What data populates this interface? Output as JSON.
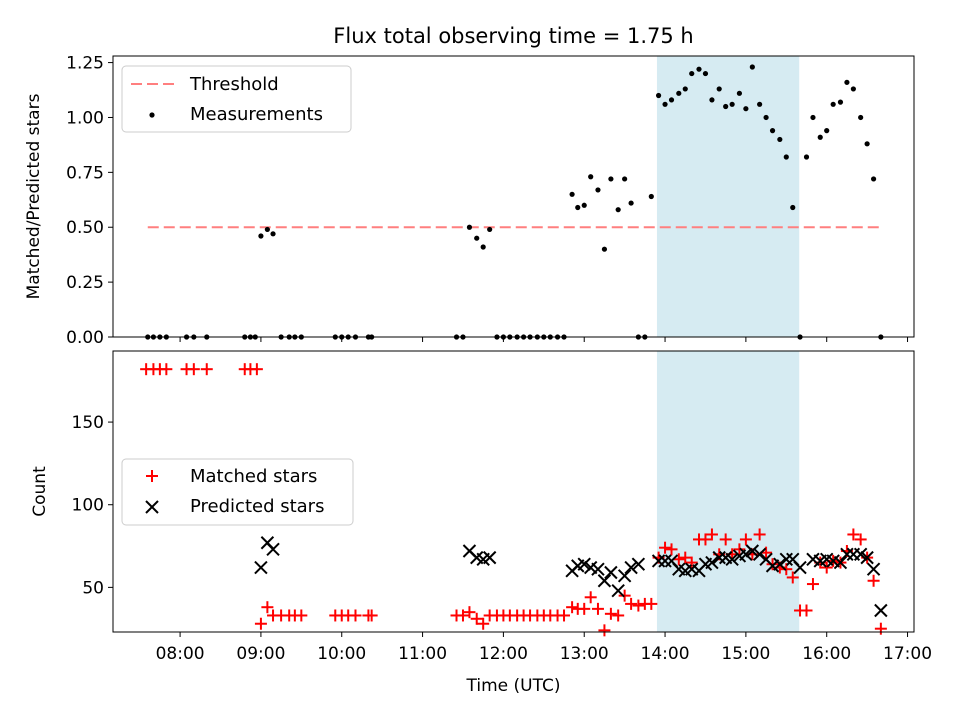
{
  "chart_data": [
    {
      "type": "scatter",
      "title": "Flux total observing time = 1.75 h",
      "xlabel": "",
      "ylabel": "Matched/Predicted stars",
      "xlim": [
        7.17,
        17.08
      ],
      "ylim": [
        0,
        1.28
      ],
      "yticks": [
        0.0,
        0.25,
        0.5,
        0.75,
        1.0,
        1.25
      ],
      "ytick_labels": [
        "0.00",
        "0.25",
        "0.50",
        "0.75",
        "1.00",
        "1.25"
      ],
      "highlight_span": [
        13.9,
        15.66
      ],
      "legend": [
        "Threshold",
        "Measurements"
      ],
      "threshold": {
        "name": "Threshold",
        "value": 0.5,
        "x": [
          7.6,
          16.65
        ],
        "color": "#ff7f7f"
      },
      "measurements": {
        "name": "Measurements",
        "color": "#000000",
        "x": [
          7.6,
          7.67,
          7.75,
          7.83,
          8.08,
          8.17,
          8.33,
          8.8,
          8.87,
          8.93,
          9.0,
          9.08,
          9.15,
          9.25,
          9.35,
          9.42,
          9.5,
          9.92,
          10.0,
          10.08,
          10.17,
          10.33,
          10.37,
          11.42,
          11.5,
          11.58,
          11.67,
          11.75,
          11.83,
          11.92,
          12.0,
          12.08,
          12.17,
          12.25,
          12.33,
          12.42,
          12.5,
          12.58,
          12.67,
          12.75,
          12.85,
          12.92,
          13.0,
          13.08,
          13.17,
          13.25,
          13.33,
          13.42,
          13.5,
          13.58,
          13.67,
          13.75,
          13.83,
          13.92,
          14.0,
          14.08,
          14.17,
          14.25,
          14.33,
          14.42,
          14.5,
          14.58,
          14.67,
          14.75,
          14.83,
          14.92,
          15.0,
          15.08,
          15.17,
          15.25,
          15.33,
          15.42,
          15.5,
          15.58,
          15.67,
          15.75,
          15.83,
          15.92,
          16.0,
          16.08,
          16.17,
          16.25,
          16.33,
          16.42,
          16.5,
          16.58,
          16.67
        ],
        "y": [
          0.0,
          0.0,
          0.0,
          0.0,
          0.0,
          0.0,
          0.0,
          0.0,
          0.0,
          0.0,
          0.46,
          0.49,
          0.47,
          0.0,
          0.0,
          0.0,
          0.0,
          0.0,
          0.0,
          0.0,
          0.0,
          0.0,
          0.0,
          0.0,
          0.0,
          0.5,
          0.45,
          0.41,
          0.49,
          0.0,
          0.0,
          0.0,
          0.0,
          0.0,
          0.0,
          0.0,
          0.0,
          0.0,
          0.0,
          0.0,
          0.65,
          0.59,
          0.6,
          0.73,
          0.67,
          0.4,
          0.72,
          0.58,
          0.72,
          0.61,
          0.0,
          0.0,
          0.64,
          1.1,
          1.06,
          1.08,
          1.11,
          1.13,
          1.2,
          1.22,
          1.2,
          1.08,
          1.13,
          1.05,
          1.06,
          1.11,
          1.04,
          1.23,
          1.06,
          1.0,
          0.94,
          0.9,
          0.82,
          0.59,
          0.0,
          0.82,
          1.0,
          0.91,
          0.94,
          1.06,
          1.07,
          1.16,
          1.13,
          1.0,
          0.88,
          0.72,
          0.0
        ]
      }
    },
    {
      "type": "scatter",
      "title": "",
      "xlabel": "Time (UTC)",
      "ylabel": "Count",
      "xlim": [
        7.17,
        17.08
      ],
      "ylim": [
        23,
        193
      ],
      "yticks": [
        50,
        100,
        150
      ],
      "ytick_labels": [
        "50",
        "100",
        "150"
      ],
      "xticks": [
        8,
        9,
        10,
        11,
        12,
        13,
        14,
        15,
        16,
        17
      ],
      "xtick_labels": [
        "08:00",
        "09:00",
        "10:00",
        "11:00",
        "12:00",
        "13:00",
        "14:00",
        "15:00",
        "16:00",
        "17:00"
      ],
      "highlight_span": [
        13.9,
        15.66
      ],
      "legend": [
        "Matched stars",
        "Predicted stars"
      ],
      "series": [
        {
          "name": "Matched stars",
          "marker": "+",
          "color": "#ff0000",
          "x": [
            7.58,
            7.67,
            7.75,
            7.83,
            8.08,
            8.17,
            8.33,
            8.8,
            8.87,
            8.95,
            9.0,
            9.08,
            9.15,
            9.25,
            9.35,
            9.42,
            9.5,
            9.92,
            10.0,
            10.08,
            10.17,
            10.33,
            10.37,
            11.42,
            11.5,
            11.58,
            11.67,
            11.75,
            11.83,
            11.92,
            12.0,
            12.08,
            12.17,
            12.25,
            12.33,
            12.42,
            12.5,
            12.58,
            12.67,
            12.75,
            12.85,
            12.92,
            13.0,
            13.08,
            13.17,
            13.25,
            13.33,
            13.42,
            13.5,
            13.58,
            13.67,
            13.75,
            13.83,
            13.92,
            14.0,
            14.08,
            14.17,
            14.25,
            14.33,
            14.42,
            14.5,
            14.58,
            14.67,
            14.75,
            14.83,
            14.92,
            15.0,
            15.08,
            15.17,
            15.25,
            15.33,
            15.42,
            15.5,
            15.58,
            15.67,
            15.75,
            15.83,
            15.92,
            16.0,
            16.08,
            16.17,
            16.25,
            16.33,
            16.42,
            16.5,
            16.58,
            16.67
          ],
          "values": [
            182,
            182,
            182,
            182,
            182,
            182,
            182,
            182,
            182,
            182,
            28,
            38,
            33,
            33,
            33,
            33,
            33,
            33,
            33,
            33,
            33,
            33,
            33,
            33,
            33,
            35,
            31,
            28,
            33,
            33,
            33,
            33,
            33,
            33,
            33,
            33,
            33,
            33,
            33,
            33,
            38,
            37,
            37,
            44,
            37,
            24,
            34,
            33,
            45,
            40,
            39,
            40,
            40,
            68,
            74,
            73,
            67,
            68,
            65,
            79,
            79,
            82,
            70,
            79,
            70,
            73,
            79,
            70,
            82,
            71,
            64,
            62,
            61,
            56,
            36,
            36,
            52,
            65,
            62,
            66,
            65,
            72,
            82,
            79,
            68,
            54,
            25
          ]
        },
        {
          "name": "Predicted stars",
          "marker": "x",
          "color": "#000000",
          "x": [
            9.0,
            9.08,
            9.15,
            11.58,
            11.67,
            11.75,
            11.83,
            12.85,
            12.92,
            13.0,
            13.08,
            13.17,
            13.25,
            13.33,
            13.42,
            13.5,
            13.58,
            13.67,
            13.92,
            14.0,
            14.08,
            14.17,
            14.25,
            14.33,
            14.42,
            14.5,
            14.58,
            14.67,
            14.75,
            14.83,
            14.92,
            15.0,
            15.08,
            15.17,
            15.25,
            15.33,
            15.42,
            15.5,
            15.58,
            15.67,
            15.83,
            15.92,
            16.0,
            16.08,
            16.17,
            16.25,
            16.33,
            16.42,
            16.5,
            16.58,
            16.67
          ],
          "values": [
            62,
            77,
            73,
            72,
            68,
            67,
            68,
            60,
            63,
            64,
            62,
            61,
            54,
            59,
            48,
            57,
            62,
            64,
            66,
            66,
            66,
            61,
            60,
            61,
            60,
            64,
            65,
            68,
            68,
            67,
            69,
            70,
            72,
            70,
            67,
            63,
            64,
            67,
            67,
            62,
            67,
            66,
            67,
            66,
            65,
            70,
            70,
            70,
            68,
            61,
            36
          ]
        }
      ]
    }
  ]
}
